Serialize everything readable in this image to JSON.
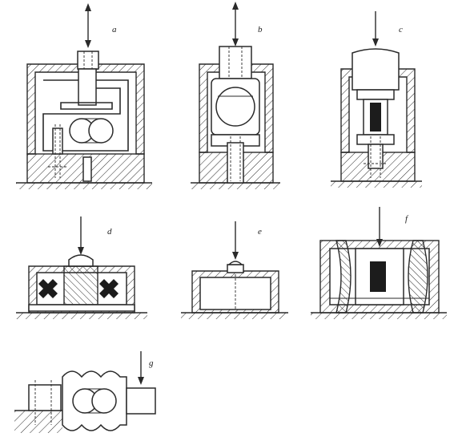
{
  "panels": [
    {
      "id": "a",
      "label": "a"
    },
    {
      "id": "b",
      "label": "b"
    },
    {
      "id": "c",
      "label": "c"
    },
    {
      "id": "d",
      "label": "d"
    },
    {
      "id": "e",
      "label": "e"
    },
    {
      "id": "f",
      "label": "f"
    },
    {
      "id": "g",
      "label": "g"
    }
  ],
  "colors": {
    "ink": "#2a2a2a",
    "background": "#ffffff",
    "strain_gauge": "#1c1c1c"
  }
}
